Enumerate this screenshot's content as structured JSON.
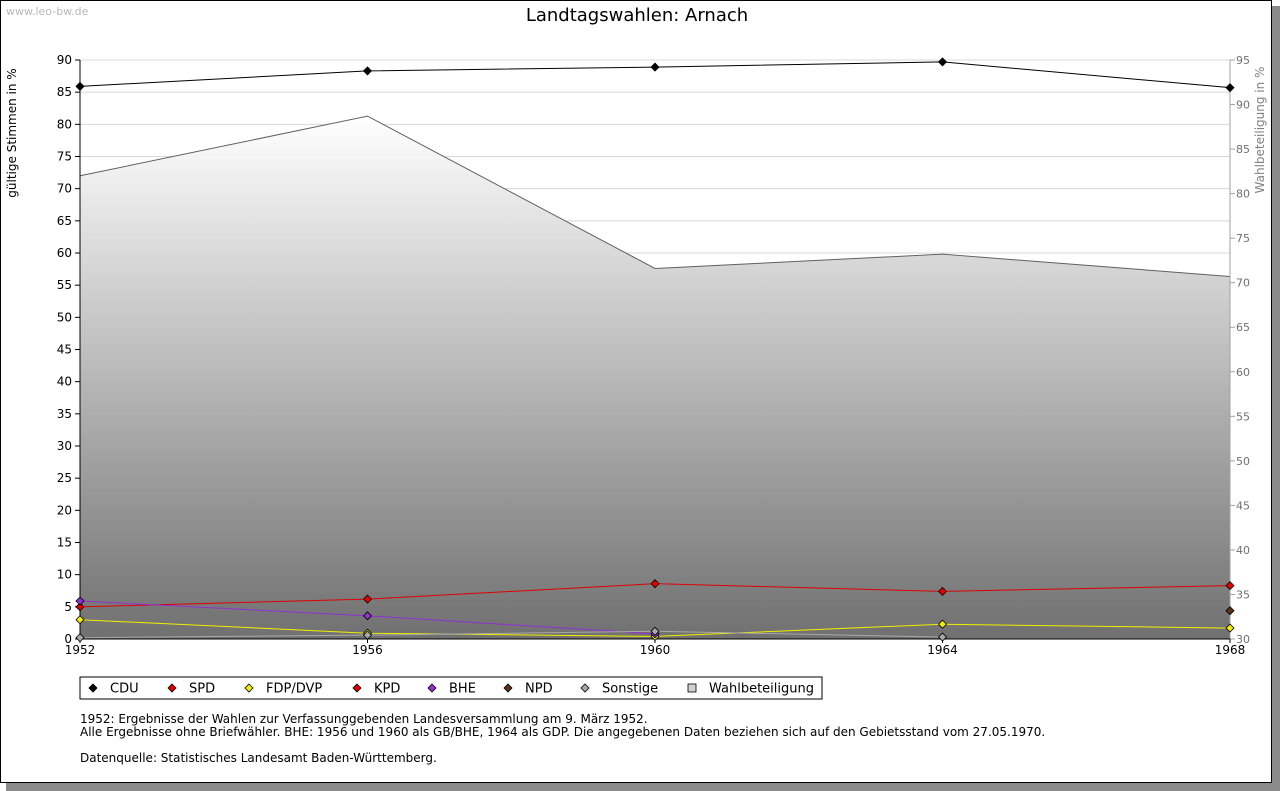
{
  "watermark": "www.leo-bw.de",
  "notes": {
    "line1": "1952: Ergebnisse der Wahlen zur Verfassunggebenden Landesversammlung am 9. März 1952.",
    "line2": "Alle Ergebnisse ohne Briefwähler. BHE: 1956 und 1960 als GB/BHE, 1964 als GDP. Die angegebenen Daten beziehen sich auf den Gebietsstand vom 27.05.1970.",
    "source": "Datenquelle: Statistisches Landesamt Baden-Württemberg."
  },
  "chart_data": {
    "type": "line",
    "title": "Landtagswahlen: Arnach",
    "ylabel": "gültige Stimmen in %",
    "y2label": "Wahlbeteiligung in %",
    "x": [
      1952,
      1956,
      1960,
      1964,
      1968
    ],
    "ylim": [
      0,
      90
    ],
    "yticks": [
      0,
      5,
      10,
      15,
      20,
      25,
      30,
      35,
      40,
      45,
      50,
      55,
      60,
      65,
      70,
      75,
      80,
      85,
      90
    ],
    "y2lim": [
      30,
      95
    ],
    "y2ticks": [
      30,
      35,
      40,
      45,
      50,
      55,
      60,
      65,
      70,
      75,
      80,
      85,
      90,
      95
    ],
    "grid": true,
    "legend_position": "bottom",
    "series": [
      {
        "name": "CDU",
        "color": "#000000",
        "values": [
          85.9,
          88.3,
          88.9,
          89.7,
          85.7
        ]
      },
      {
        "name": "SPD",
        "color": "#e00000",
        "values": [
          5.0,
          6.2,
          8.6,
          7.4,
          8.3
        ]
      },
      {
        "name": "FDP/DVP",
        "color": "#f0f000",
        "values": [
          3.0,
          0.9,
          0.4,
          2.3,
          1.7
        ]
      },
      {
        "name": "KPD",
        "color": "#e00000",
        "values": [
          null,
          null,
          null,
          null,
          null
        ]
      },
      {
        "name": "BHE",
        "color": "#9030d0",
        "values": [
          5.9,
          3.6,
          0.8,
          null,
          null
        ]
      },
      {
        "name": "NPD",
        "color": "#603018",
        "values": [
          null,
          null,
          null,
          null,
          4.4
        ]
      },
      {
        "name": "Sonstige",
        "color": "#a8a8a8",
        "values": [
          0.2,
          0.6,
          1.2,
          0.3,
          null
        ]
      }
    ],
    "area": {
      "name": "Wahlbeteiligung",
      "axis": "right",
      "values": [
        82.0,
        88.7,
        71.6,
        73.2,
        70.7
      ]
    }
  }
}
